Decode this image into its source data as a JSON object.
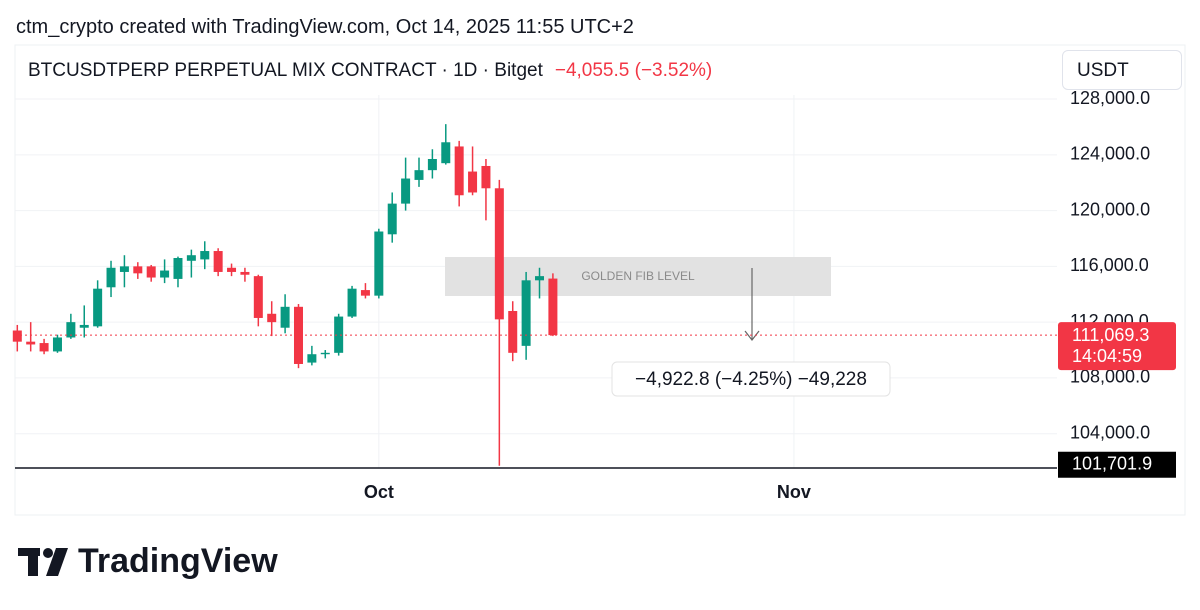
{
  "header": {
    "credit": "ctm_crypto created with TradingView.com, Oct 14, 2025 11:55 UTC+2"
  },
  "chart_data": {
    "type": "candlestick",
    "title": "BTCUSDTPERP PERPETUAL MIX CONTRACT · 1D · Bitget",
    "change_label": "−4,055.5 (−3.52%)",
    "currency": "USDT",
    "up_color": "#089981",
    "down_color": "#f23645",
    "categories": [
      null,
      null,
      null,
      null,
      null,
      null,
      null,
      null,
      null,
      null,
      null,
      null,
      null,
      null,
      null,
      null,
      null,
      null,
      null,
      null,
      null,
      null,
      null,
      null,
      null,
      null,
      null,
      "Oct",
      null,
      null,
      null,
      null,
      null,
      null,
      null,
      null,
      null,
      null,
      null,
      null,
      null,
      null,
      null,
      null,
      null,
      null,
      null,
      null,
      null,
      null,
      null,
      null,
      null,
      null,
      null,
      null,
      null,
      null,
      "Nov",
      null,
      null,
      null,
      null,
      null,
      null,
      null,
      null,
      null,
      null,
      null,
      null,
      null,
      null,
      null,
      null,
      null,
      null,
      null
    ],
    "open": [
      111400,
      110600,
      110500,
      109900,
      110900,
      111600,
      111700,
      114500,
      115600,
      116000,
      116000,
      115200,
      115100,
      116400,
      116500,
      117100,
      115900,
      115600,
      115300,
      112600,
      111600,
      113100,
      109100,
      109700,
      109800,
      112400,
      114300,
      113900,
      118300,
      120500,
      122200,
      122900,
      123400,
      124600,
      122800,
      123200,
      121600,
      112800,
      110300,
      115000,
      115124.8,
      null,
      null,
      null,
      null,
      null,
      null,
      null,
      null,
      null,
      null,
      null,
      null,
      null,
      null,
      null,
      null,
      null,
      null,
      null,
      null,
      null,
      null,
      null,
      null,
      null,
      null,
      null,
      null,
      null,
      null,
      null,
      null,
      null,
      null,
      null,
      null,
      null
    ],
    "high": [
      111800,
      112000,
      110800,
      111100,
      112600,
      113200,
      115000,
      116400,
      116800,
      116300,
      116100,
      116500,
      116700,
      117200,
      117800,
      117300,
      116200,
      115900,
      115400,
      113500,
      114000,
      113300,
      110300,
      110000,
      112600,
      114600,
      114800,
      118700,
      121300,
      123800,
      123800,
      124400,
      126200,
      125000,
      124600,
      123700,
      122200,
      113500,
      115600,
      115900,
      115500,
      null,
      null,
      null,
      null,
      null,
      null,
      null,
      null,
      null,
      null,
      null,
      null,
      null,
      null,
      null,
      null,
      null,
      null,
      null,
      null,
      null,
      null,
      null,
      null,
      null,
      null,
      null,
      null,
      null,
      null,
      null,
      null,
      null,
      null,
      null,
      null,
      null
    ],
    "low": [
      109900,
      109900,
      109700,
      109800,
      110800,
      110900,
      111600,
      113800,
      114500,
      115100,
      114900,
      114800,
      114500,
      115200,
      115800,
      115300,
      115300,
      114900,
      111700,
      111000,
      111200,
      108700,
      108900,
      109400,
      109600,
      112300,
      113700,
      113700,
      117700,
      120000,
      121700,
      122300,
      123300,
      120300,
      121100,
      119300,
      101701.9,
      109200,
      109300,
      113700,
      111000,
      null,
      null,
      null,
      null,
      null,
      null,
      null,
      null,
      null,
      null,
      null,
      null,
      null,
      null,
      null,
      null,
      null,
      null,
      null,
      null,
      null,
      null,
      null,
      null,
      null,
      null,
      null,
      null,
      null,
      null,
      null,
      null,
      null,
      null,
      null,
      null,
      null
    ],
    "close": [
      110600,
      110400,
      109900,
      110900,
      112000,
      111800,
      114400,
      115900,
      116000,
      115500,
      115200,
      115700,
      116600,
      116800,
      117100,
      115600,
      115600,
      115400,
      112300,
      112000,
      113100,
      109000,
      109700,
      109800,
      112400,
      114400,
      113900,
      118500,
      120500,
      122300,
      122900,
      123700,
      124900,
      121100,
      121300,
      121600,
      112200,
      109800,
      115000,
      115300,
      111069.3,
      null,
      null,
      null,
      null,
      null,
      null,
      null,
      null,
      null,
      null,
      null,
      null,
      null,
      null,
      null,
      null,
      null,
      null,
      null,
      null,
      null,
      null,
      null,
      null,
      null,
      null,
      null,
      null,
      null,
      null,
      null,
      null,
      null,
      null,
      null,
      null,
      null
    ],
    "ylim": [
      101540,
      128290
    ],
    "yticks": [
      {
        "value": 104000,
        "label": "104,000.0"
      },
      {
        "value": 108000,
        "label": "108,000.0"
      },
      {
        "value": 112000,
        "label": "112,000.0"
      },
      {
        "value": 116000,
        "label": "116,000.0"
      },
      {
        "value": 120000,
        "label": "120,000.0"
      },
      {
        "value": 124000,
        "label": "124,000.0"
      },
      {
        "value": 128000,
        "label": "128,000.0"
      }
    ],
    "grid": true,
    "last_price": {
      "value": 111069.3,
      "label": "111,069.3"
    },
    "countdown": "14:04:59",
    "low_marker": {
      "value": 101701.9,
      "label": "101,701.9"
    },
    "annotation": "GOLDEN FIB LEVEL",
    "measure_label": "−4,922.8 (−4.25%) −49,228"
  },
  "footer": {
    "brand": "TradingView"
  }
}
